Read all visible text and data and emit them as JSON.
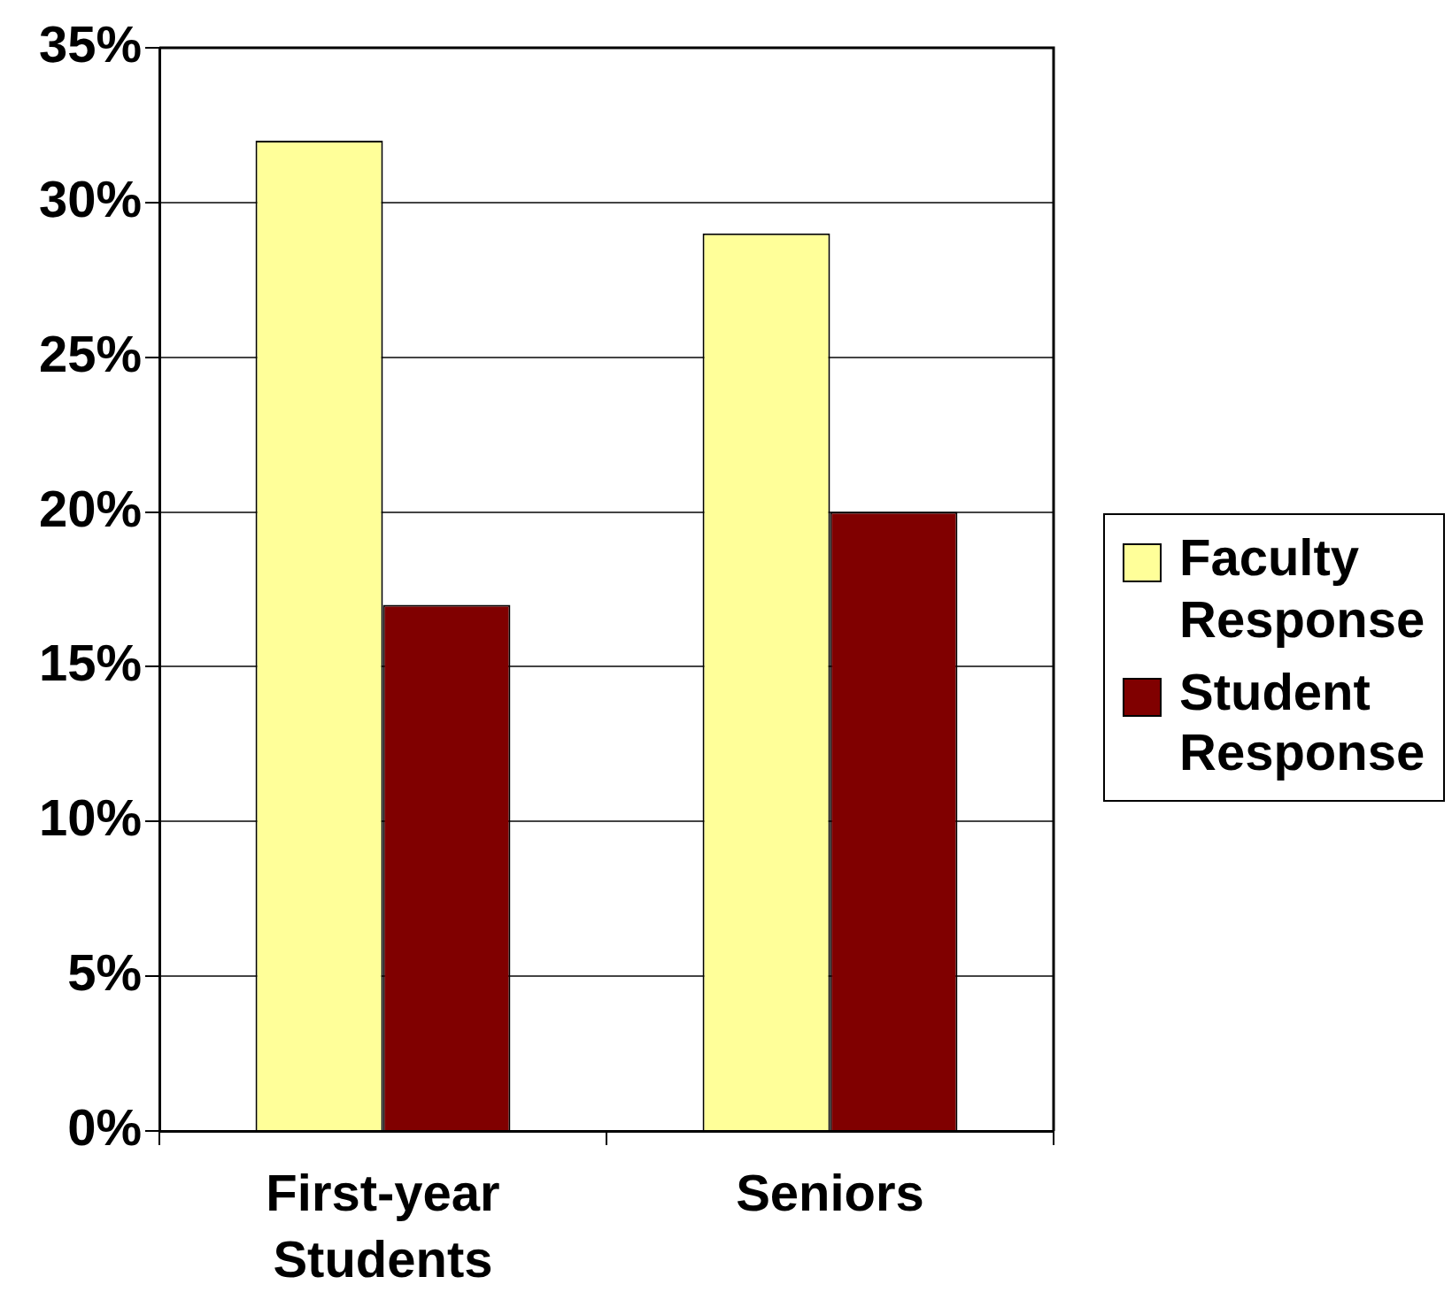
{
  "chart_data": {
    "type": "bar",
    "categories": [
      "First-year Students",
      "Seniors"
    ],
    "series": [
      {
        "name": "Faculty Response",
        "color": "#ffff99",
        "values": [
          32,
          29
        ]
      },
      {
        "name": "Student Response",
        "color": "#800000",
        "values": [
          17,
          20
        ]
      }
    ],
    "ylim": [
      0,
      35
    ],
    "yticks": [
      {
        "value": 0,
        "label": "0%"
      },
      {
        "value": 5,
        "label": "5%"
      },
      {
        "value": 10,
        "label": "10%"
      },
      {
        "value": 15,
        "label": "15%"
      },
      {
        "value": 20,
        "label": "20%"
      },
      {
        "value": 25,
        "label": "25%"
      },
      {
        "value": 30,
        "label": "30%"
      },
      {
        "value": 35,
        "label": "35%"
      }
    ],
    "grid": "y",
    "legend": "right"
  }
}
